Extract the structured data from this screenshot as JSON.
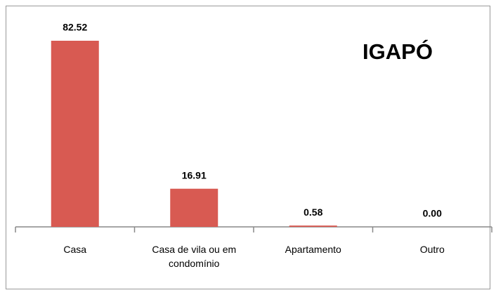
{
  "chart_data": {
    "type": "bar",
    "title": "IGAPÓ",
    "categories": [
      "Casa",
      "Casa de vila ou em condomínio",
      "Apartamento",
      "Outro"
    ],
    "values": [
      82.52,
      16.91,
      0.58,
      0
    ],
    "value_labels": [
      "82.52",
      "16.91",
      "0.58",
      "0.00"
    ],
    "color": "#d85a52"
  }
}
